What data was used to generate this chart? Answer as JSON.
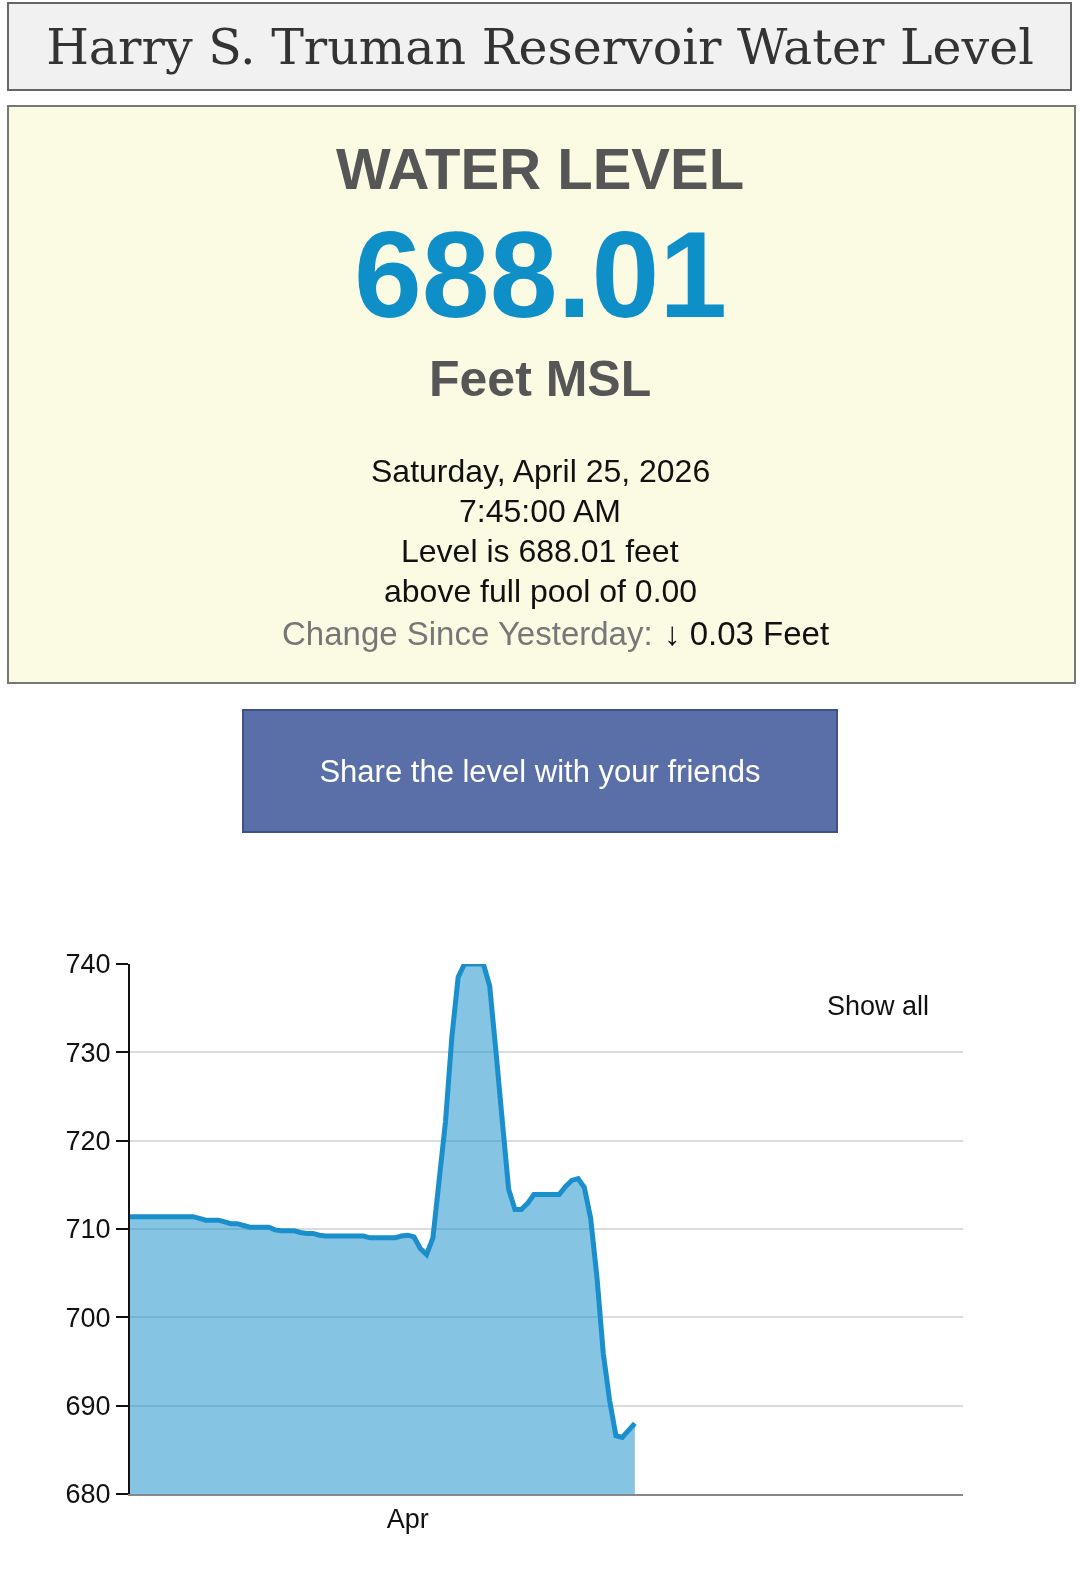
{
  "chart_data": {
    "type": "area",
    "title": "Harry S. Truman Reservoir Water Level",
    "annotations": [
      "WATER LEVEL",
      "688.01",
      "Feet MSL",
      "Saturday, April 25, 2026",
      "7:45:00 AM",
      "Level is 688.01 feet",
      "above full pool of 0.00",
      "Change Since Yesterday:",
      "↓ 0.03 Feet",
      "Share the level with your friends",
      "Show all"
    ],
    "color": "#1a8fcc",
    "categories": [
      null,
      null,
      null,
      null,
      null,
      null,
      null,
      null,
      null,
      null,
      null,
      null,
      null,
      null,
      null,
      null,
      null,
      null,
      null,
      null,
      null,
      null,
      null,
      null,
      null,
      null,
      null,
      null,
      null,
      null,
      null,
      null,
      null,
      null,
      null,
      null,
      null,
      null,
      null,
      null,
      null,
      null,
      null,
      null,
      "Apr",
      null,
      null,
      null,
      null,
      null,
      null,
      null,
      null,
      null,
      null,
      null,
      null,
      null,
      null,
      null,
      null,
      null,
      null,
      null,
      null,
      null,
      null,
      null,
      null,
      null,
      null,
      null,
      null,
      null,
      null,
      null,
      null,
      null,
      null,
      null,
      null,
      null,
      null,
      null,
      null,
      null,
      null,
      null,
      null,
      null,
      null,
      null,
      null,
      null,
      null,
      null,
      null,
      null,
      null,
      null,
      null,
      null,
      null,
      null,
      null,
      null,
      null,
      null,
      null,
      null,
      null,
      null,
      null,
      null,
      null,
      null,
      null,
      null,
      null,
      null,
      null,
      null,
      null,
      null,
      null,
      null,
      null,
      null,
      null,
      null,
      null,
      null,
      null
    ],
    "values": [
      711.4,
      711.4,
      711.4,
      711.4,
      711.4,
      711.4,
      711.4,
      711.4,
      711.4,
      711.4,
      711.4,
      711.2,
      711.0,
      711.0,
      711.0,
      710.8,
      710.6,
      710.6,
      710.4,
      710.2,
      710.2,
      710.2,
      710.2,
      709.9,
      709.8,
      709.8,
      709.8,
      709.6,
      709.5,
      709.5,
      709.3,
      709.2,
      709.2,
      709.2,
      709.2,
      709.2,
      709.2,
      709.2,
      709.0,
      709.0,
      709.0,
      709.0,
      709.0,
      709.2,
      709.3,
      709.1,
      707.8,
      707.1,
      709.0,
      715.6,
      722.2,
      731.7,
      738.5,
      740,
      740,
      740,
      740,
      737.5,
      730.0,
      722.2,
      714.5,
      712.2,
      712.2,
      712.9,
      713.9,
      713.9,
      713.9,
      713.9,
      713.9,
      714.8,
      715.5,
      715.7,
      714.7,
      711.2,
      704.5,
      695.9,
      690.6,
      686.6,
      686.4,
      687.2,
      688.0,
      null,
      null,
      null,
      null,
      null,
      null,
      null,
      null,
      null,
      null,
      null,
      null,
      null,
      null,
      null,
      null,
      null,
      null,
      null,
      null,
      null,
      null,
      null,
      null,
      null,
      null,
      null,
      null,
      null,
      null,
      null,
      null,
      null,
      null,
      null,
      null,
      null,
      null,
      null,
      null,
      null,
      null,
      null,
      null,
      null,
      null,
      null,
      null,
      null,
      null,
      null,
      null
    ],
    "ylim": [
      680,
      740
    ],
    "yticks": [
      680,
      690,
      700,
      710,
      720,
      730,
      740
    ],
    "grid": "y"
  }
}
